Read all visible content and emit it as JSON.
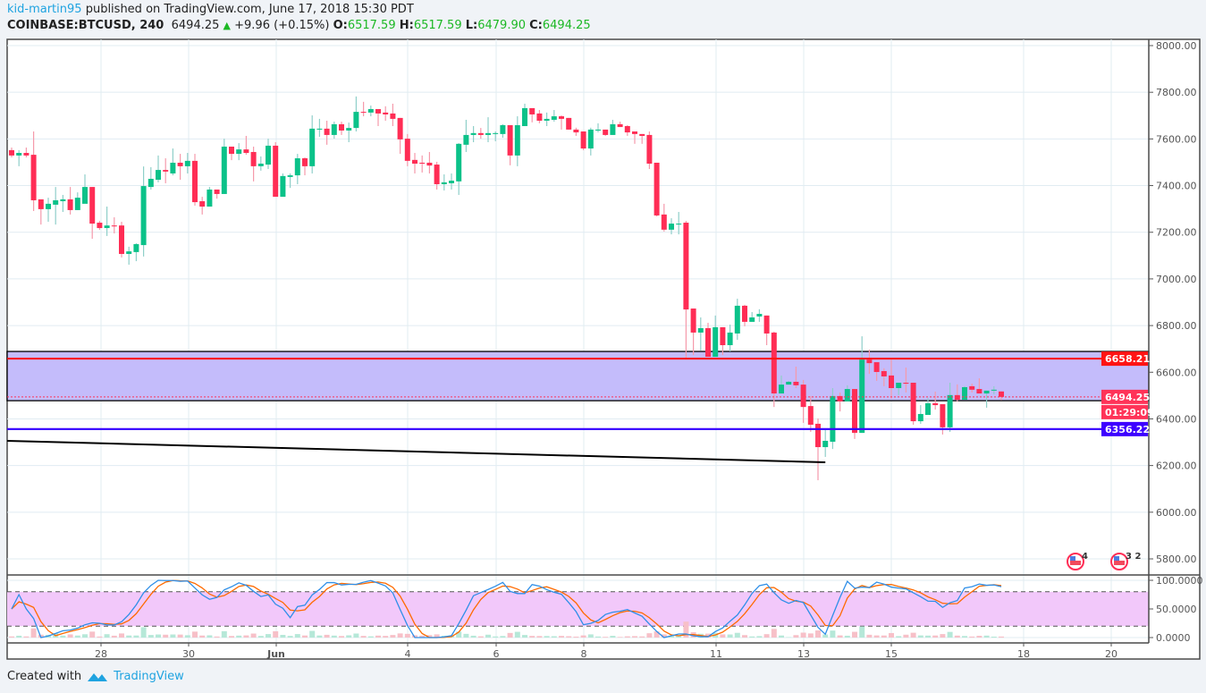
{
  "header": {
    "author": "kid-martin95",
    "published_text": "published on TradingView.com, June 17, 2018 15:30 PDT",
    "symbol": "COINBASE:BTCUSD, 240",
    "last": "6494.25",
    "change": "+9.96 (+0.15%)",
    "o_label": "O:",
    "o": "6517.59",
    "h_label": "H:",
    "h": "6517.59",
    "l_label": "L:",
    "l": "6479.90",
    "c_label": "C:",
    "c": "6494.25"
  },
  "footer": {
    "created_with": "Created with",
    "brand": "TradingView"
  },
  "colors": {
    "up": "#0bc289",
    "down": "#ff2d55",
    "zone": "#c4bcfb",
    "resistance": "#ff1414",
    "support": "#3d00ff",
    "trendline": "#000000",
    "stoch_k": "#2f8fe8",
    "stoch_d": "#ff6a00",
    "stoch_band": "#f2c8fa"
  },
  "chart_data": {
    "type": "candlestick",
    "interval": "240",
    "start": "2018-05-26 00:00",
    "y_ticks": [
      "8000.00",
      "7800.00",
      "7600.00",
      "7400.00",
      "7200.00",
      "7000.00",
      "6800.00",
      "6600.00",
      "6400.00",
      "6200.00",
      "6000.00",
      "5800.00"
    ],
    "ylim": [
      5800,
      8000
    ],
    "x_ticks": [
      "28",
      "30",
      "Jun",
      "4",
      "6",
      "8",
      "11",
      "13",
      "15",
      "18",
      "20"
    ],
    "grid": true,
    "candles": [
      [
        7552,
        7563,
        7521,
        7529
      ],
      [
        7529,
        7552,
        7483,
        7540
      ],
      [
        7540,
        7563,
        7521,
        7529
      ],
      [
        7532,
        7632,
        7291,
        7337
      ],
      [
        7341,
        7341,
        7233,
        7299
      ],
      [
        7299,
        7348,
        7245,
        7322
      ],
      [
        7318,
        7394,
        7233,
        7337
      ],
      [
        7333,
        7360,
        7287,
        7341
      ],
      [
        7341,
        7394,
        7276,
        7295
      ],
      [
        7295,
        7371,
        7295,
        7348
      ],
      [
        7322,
        7448,
        7325,
        7394
      ],
      [
        7394,
        7394,
        7172,
        7237
      ],
      [
        7241,
        7249,
        7210,
        7218
      ],
      [
        7218,
        7310,
        7184,
        7229
      ],
      [
        7229,
        7264,
        7195,
        7225
      ],
      [
        7229,
        7245,
        7092,
        7107
      ],
      [
        7107,
        7138,
        7061,
        7118
      ],
      [
        7115,
        7153,
        7076,
        7149
      ],
      [
        7145,
        7482,
        7096,
        7398
      ],
      [
        7394,
        7479,
        7383,
        7429
      ],
      [
        7425,
        7529,
        7414,
        7467
      ],
      [
        7467,
        7517,
        7410,
        7460
      ],
      [
        7452,
        7559,
        7444,
        7498
      ],
      [
        7498,
        7536,
        7425,
        7483
      ],
      [
        7483,
        7540,
        7452,
        7506
      ],
      [
        7506,
        7536,
        7314,
        7329
      ],
      [
        7333,
        7352,
        7276,
        7310
      ],
      [
        7310,
        7394,
        7310,
        7383
      ],
      [
        7383,
        7383,
        7344,
        7364
      ],
      [
        7364,
        7601,
        7364,
        7567
      ],
      [
        7567,
        7567,
        7509,
        7536
      ],
      [
        7536,
        7582,
        7509,
        7555
      ],
      [
        7555,
        7613,
        7532,
        7540
      ],
      [
        7544,
        7567,
        7418,
        7483
      ],
      [
        7483,
        7525,
        7464,
        7494
      ],
      [
        7490,
        7601,
        7471,
        7571
      ],
      [
        7571,
        7586,
        7352,
        7352
      ],
      [
        7352,
        7452,
        7352,
        7441
      ],
      [
        7437,
        7452,
        7390,
        7444
      ],
      [
        7444,
        7536,
        7406,
        7517
      ],
      [
        7517,
        7521,
        7444,
        7483
      ],
      [
        7483,
        7701,
        7452,
        7644
      ],
      [
        7640,
        7686,
        7609,
        7644
      ],
      [
        7644,
        7678,
        7575,
        7617
      ],
      [
        7617,
        7674,
        7601,
        7663
      ],
      [
        7663,
        7674,
        7617,
        7636
      ],
      [
        7636,
        7670,
        7586,
        7647
      ],
      [
        7647,
        7782,
        7632,
        7716
      ],
      [
        7716,
        7759,
        7697,
        7713
      ],
      [
        7713,
        7743,
        7697,
        7728
      ],
      [
        7728,
        7728,
        7655,
        7709
      ],
      [
        7713,
        7740,
        7678,
        7705
      ],
      [
        7709,
        7751,
        7655,
        7686
      ],
      [
        7690,
        7690,
        7536,
        7598
      ],
      [
        7601,
        7621,
        7483,
        7506
      ],
      [
        7510,
        7540,
        7452,
        7494
      ],
      [
        7498,
        7529,
        7456,
        7494
      ],
      [
        7498,
        7544,
        7452,
        7486
      ],
      [
        7490,
        7502,
        7383,
        7406
      ],
      [
        7406,
        7448,
        7379,
        7414
      ],
      [
        7410,
        7452,
        7383,
        7421
      ],
      [
        7418,
        7582,
        7360,
        7579
      ],
      [
        7575,
        7682,
        7544,
        7617
      ],
      [
        7617,
        7655,
        7586,
        7625
      ],
      [
        7625,
        7647,
        7601,
        7617
      ],
      [
        7617,
        7693,
        7586,
        7625
      ],
      [
        7621,
        7632,
        7590,
        7625
      ],
      [
        7621,
        7663,
        7605,
        7659
      ],
      [
        7659,
        7659,
        7487,
        7529
      ],
      [
        7529,
        7697,
        7483,
        7659
      ],
      [
        7655,
        7751,
        7655,
        7732
      ],
      [
        7732,
        7732,
        7671,
        7705
      ],
      [
        7709,
        7724,
        7667,
        7678
      ],
      [
        7678,
        7713,
        7655,
        7686
      ],
      [
        7682,
        7724,
        7674,
        7697
      ],
      [
        7697,
        7701,
        7640,
        7686
      ],
      [
        7690,
        7690,
        7640,
        7640
      ],
      [
        7640,
        7648,
        7613,
        7628
      ],
      [
        7632,
        7632,
        7552,
        7559
      ],
      [
        7559,
        7648,
        7529,
        7640
      ],
      [
        7636,
        7667,
        7628,
        7640
      ],
      [
        7640,
        7640,
        7613,
        7617
      ],
      [
        7617,
        7682,
        7617,
        7663
      ],
      [
        7663,
        7674,
        7651,
        7651
      ],
      [
        7655,
        7659,
        7613,
        7628
      ],
      [
        7632,
        7632,
        7579,
        7621
      ],
      [
        7621,
        7621,
        7579,
        7613
      ],
      [
        7617,
        7632,
        7471,
        7494
      ],
      [
        7498,
        7498,
        7268,
        7272
      ],
      [
        7276,
        7322,
        7203,
        7211
      ],
      [
        7211,
        7260,
        7191,
        7237
      ],
      [
        7233,
        7287,
        7191,
        7237
      ],
      [
        7241,
        7249,
        6654,
        6869
      ],
      [
        6873,
        6873,
        6674,
        6770
      ],
      [
        6770,
        6835,
        6693,
        6789
      ],
      [
        6789,
        6812,
        6666,
        6666
      ],
      [
        6666,
        6843,
        6666,
        6793
      ],
      [
        6793,
        6793,
        6674,
        6716
      ],
      [
        6716,
        6804,
        6689,
        6770
      ],
      [
        6766,
        6915,
        6739,
        6885
      ],
      [
        6885,
        6889,
        6797,
        6816
      ],
      [
        6816,
        6858,
        6816,
        6835
      ],
      [
        6839,
        6870,
        6816,
        6850
      ],
      [
        6843,
        6843,
        6716,
        6766
      ],
      [
        6770,
        6774,
        6451,
        6509
      ],
      [
        6509,
        6586,
        6509,
        6547
      ],
      [
        6547,
        6563,
        6547,
        6559
      ],
      [
        6559,
        6624,
        6532,
        6544
      ],
      [
        6547,
        6567,
        6383,
        6451
      ],
      [
        6455,
        6498,
        6344,
        6375
      ],
      [
        6379,
        6402,
        6137,
        6279
      ],
      [
        6279,
        6352,
        6237,
        6306
      ],
      [
        6302,
        6532,
        6271,
        6498
      ],
      [
        6498,
        6513,
        6432,
        6475
      ],
      [
        6475,
        6544,
        6475,
        6528
      ],
      [
        6528,
        6528,
        6314,
        6340
      ],
      [
        6340,
        6754,
        6340,
        6654
      ],
      [
        6654,
        6697,
        6593,
        6639
      ],
      [
        6643,
        6643,
        6563,
        6601
      ],
      [
        6605,
        6617,
        6540,
        6582
      ],
      [
        6586,
        6654,
        6486,
        6532
      ],
      [
        6532,
        6555,
        6502,
        6555
      ],
      [
        6555,
        6620,
        6513,
        6551
      ],
      [
        6555,
        6555,
        6375,
        6390
      ],
      [
        6390,
        6459,
        6379,
        6421
      ],
      [
        6417,
        6490,
        6417,
        6467
      ],
      [
        6467,
        6517,
        6440,
        6459
      ],
      [
        6463,
        6463,
        6333,
        6364
      ],
      [
        6364,
        6555,
        6344,
        6502
      ],
      [
        6502,
        6548,
        6475,
        6482
      ],
      [
        6482,
        6540,
        6482,
        6536
      ],
      [
        6540,
        6551,
        6513,
        6525
      ],
      [
        6528,
        6574,
        6509,
        6509
      ],
      [
        6509,
        6521,
        6448,
        6521
      ],
      [
        6521,
        6540,
        6505,
        6525
      ],
      [
        6517.59,
        6517.59,
        6479.9,
        6494.25
      ]
    ],
    "zone": {
      "top": 6689,
      "bottom": 6478
    },
    "levels": [
      {
        "label": "6658.21",
        "value": 6658.21,
        "color": "#ff1414"
      },
      {
        "label": "6356.22",
        "value": 6356.22,
        "color": "#3d00ff"
      }
    ],
    "last_price": {
      "label": "6494.25",
      "value": 6494.25,
      "countdown": "01:29:09",
      "color": "#ff3358"
    },
    "trendline": {
      "from": {
        "candle": 0,
        "price": 6306
      },
      "to": {
        "candle": 111,
        "price": 6214
      }
    },
    "events": [
      {
        "count": "4"
      },
      {
        "count": "3 2"
      }
    ],
    "indicator": {
      "type": "stochastic-rsi",
      "y_ticks": [
        "100.0000",
        "50.0000",
        "0.0000"
      ],
      "ylim": [
        0,
        100
      ],
      "band": [
        20,
        80
      ]
    }
  }
}
